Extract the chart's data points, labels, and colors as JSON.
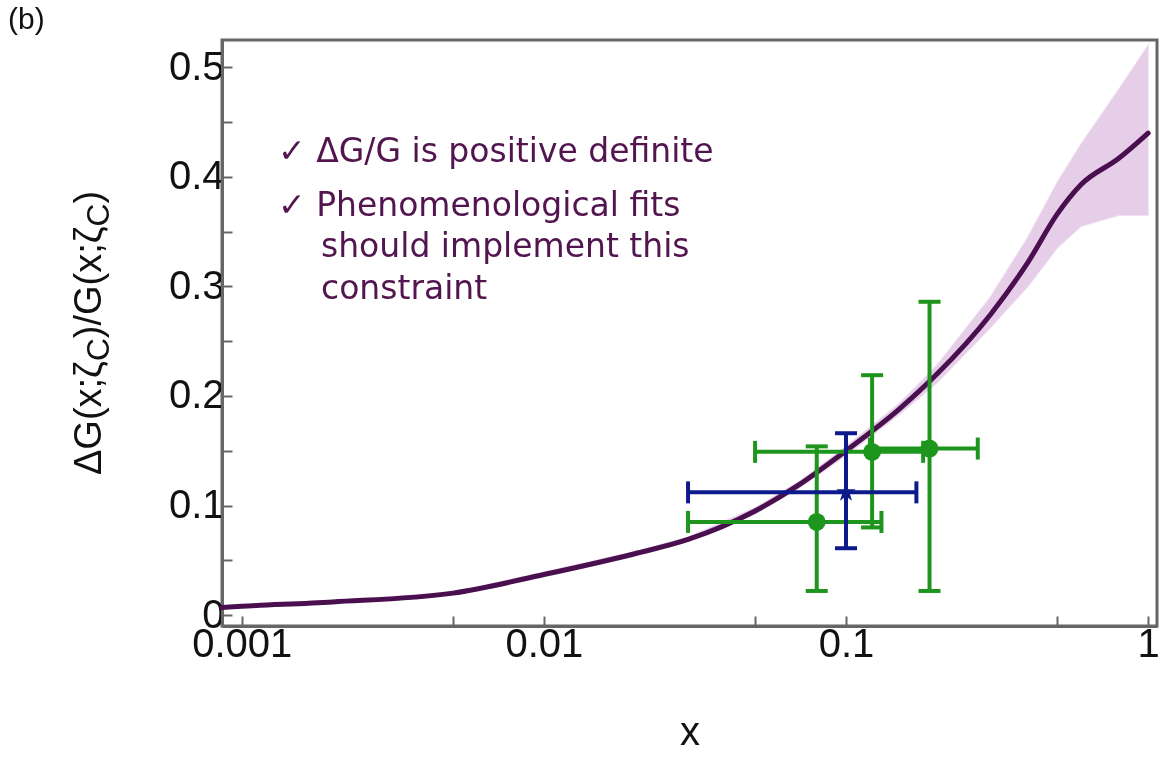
{
  "chart_data": {
    "type": "line",
    "xlabel": "x",
    "ylabel": "ΔG(x;ζ$_{C}$)/G(x;ζ$_{C}$)",
    "log": "x",
    "grid": false,
    "xlim": [
      0.00086,
      1.07
    ],
    "ylim": [
      -0.01,
      0.525
    ],
    "xticks": [
      0.001,
      {
        "value": 0.005,
        "label": null
      },
      0.01,
      {
        "value": 0.05,
        "label": null
      },
      0.1,
      {
        "value": 0.5,
        "label": null
      },
      1
    ],
    "yticks": [
      0,
      {
        "value": 0.05,
        "label": null
      },
      0.1,
      {
        "value": 0.15,
        "label": null
      },
      0.2,
      {
        "value": 0.25,
        "label": null
      },
      0.3,
      {
        "value": 0.35,
        "label": null
      },
      0.4,
      {
        "value": 0.45,
        "label": null
      },
      0.5
    ],
    "annotations": [
      "(b)",
      "✓ ΔG/G is positive definite",
      "✓ Phenomenological fits\nshould implement this\nconstraint"
    ],
    "series": [
      {
        "color": "#4a0f4f",
        "marker": "none",
        "x": [
          0.00086,
          0.001,
          0.002,
          0.005,
          0.01,
          0.02,
          0.03,
          0.05,
          0.07,
          0.1,
          0.15,
          0.2,
          0.3,
          0.4,
          0.5,
          0.6,
          0.8,
          1.0
        ],
        "values": [
          0.007,
          0.008,
          0.012,
          0.02,
          0.037,
          0.056,
          0.069,
          0.095,
          0.119,
          0.15,
          0.188,
          0.22,
          0.274,
          0.322,
          0.366,
          0.393,
          0.417,
          0.44
        ],
        "lower": [
          0.006,
          0.007,
          0.011,
          0.019,
          0.035,
          0.054,
          0.067,
          0.092,
          0.116,
          0.146,
          0.183,
          0.212,
          0.262,
          0.3,
          0.335,
          0.355,
          0.365,
          0.365
        ],
        "upper": [
          0.008,
          0.009,
          0.013,
          0.021,
          0.039,
          0.058,
          0.071,
          0.098,
          0.122,
          0.154,
          0.193,
          0.228,
          0.29,
          0.345,
          0.395,
          0.43,
          0.48,
          0.52
        ]
      },
      {
        "type": "scatter",
        "color": "#1e961e",
        "marker": "circle",
        "x": [
          0.08,
          0.122,
          0.189
        ],
        "values": [
          0.085,
          0.149,
          0.152
        ],
        "errors": [
          [
            0.022,
            0.154
          ],
          [
            0.08,
            0.219
          ],
          [
            0.022,
            0.286
          ]
        ],
        "xerrors": [
          [
            0.03,
            0.131
          ],
          [
            0.05,
            0.18
          ],
          [
            0.12,
            0.273
          ]
        ]
      },
      {
        "type": "scatter",
        "color": "#0d1a8c",
        "marker": "star",
        "x": [
          0.1
        ],
        "values": [
          0.112
        ],
        "errors": [
          [
            0.061,
            0.166
          ]
        ],
        "xerrors": [
          [
            0.03,
            0.171
          ]
        ]
      }
    ]
  }
}
